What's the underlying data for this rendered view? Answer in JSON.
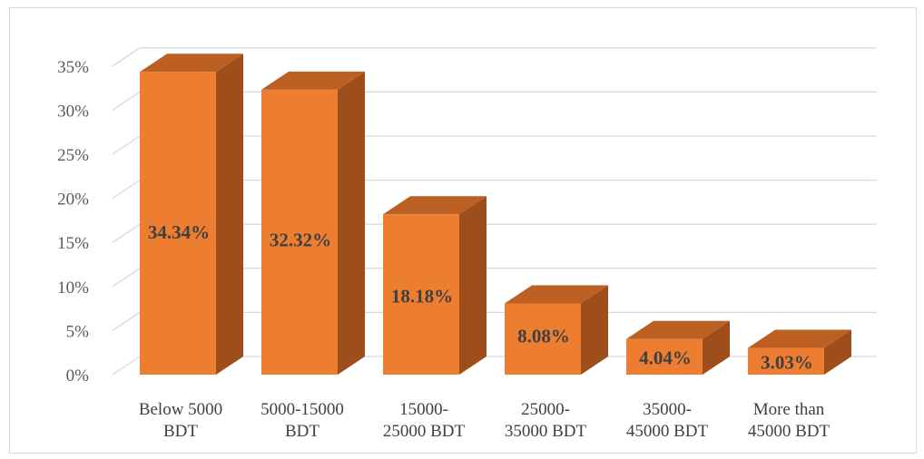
{
  "chart_data": {
    "type": "bar",
    "style": "3d-column",
    "categories": [
      [
        "Below 5000",
        "BDT"
      ],
      [
        "5000-15000",
        "BDT"
      ],
      [
        "15000-",
        "25000 BDT"
      ],
      [
        "25000-",
        "35000 BDT"
      ],
      [
        "35000-",
        "45000 BDT"
      ],
      [
        "More than",
        "45000 BDT"
      ]
    ],
    "values": [
      34.34,
      32.32,
      18.18,
      8.08,
      4.04,
      3.03
    ],
    "data_labels": [
      "34.34%",
      "32.32%",
      "18.18%",
      "8.08%",
      "4.04%",
      "3.03%"
    ],
    "y_ticks": [
      "0%",
      "5%",
      "10%",
      "15%",
      "20%",
      "25%",
      "30%",
      "35%"
    ],
    "ylim": [
      0,
      35
    ],
    "grid": true,
    "legend": "none",
    "colors": {
      "front": "#ED7D31",
      "side": "#9E4E1B",
      "top": "#BC5F22",
      "grid": "#d9d9d9"
    }
  }
}
